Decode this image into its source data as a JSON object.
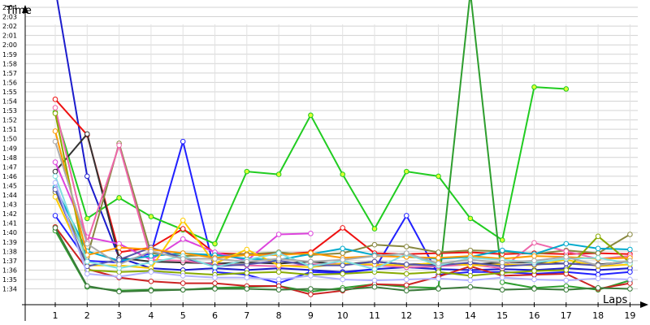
{
  "chart_data": {
    "type": "line",
    "title": "",
    "ylabel": "Time",
    "xlabel": "Laps",
    "x": [
      1,
      2,
      3,
      4,
      5,
      6,
      7,
      8,
      9,
      10,
      11,
      12,
      13,
      14,
      15,
      16,
      17,
      18,
      19
    ],
    "ylim_seconds": [
      93,
      126
    ],
    "yticks": [
      "1:34",
      "1:35",
      "1:36",
      "1:37",
      "1:38",
      "1:39",
      "1:40",
      "1:41",
      "1:42",
      "1:43",
      "1:44",
      "1:45",
      "1:46",
      "1:47",
      "1:48",
      "1:49",
      "1:50",
      "1:51",
      "1:52",
      "1:53",
      "1:54",
      "1:55",
      "1:56",
      "1:57",
      "1:58",
      "1:59",
      "2:00",
      "2:01",
      "2:02",
      "2:03",
      "2:04"
    ],
    "grid": true,
    "legend": "none",
    "series": [
      {
        "color": "#1c1ccc",
        "values": [
          130,
          106,
          97.3,
          96.2,
          96.0,
          96.2,
          96.0,
          96.2,
          96.0,
          95.8,
          96.1,
          96.3,
          96.1,
          96.0,
          96.1,
          96.0,
          96.2,
          96.0,
          96.2
        ]
      },
      {
        "color": "#2020ff",
        "values": [
          101.8,
          97.0,
          96.8,
          97.8,
          109.7,
          95.8,
          95.5,
          94.6,
          95.8,
          95.7,
          96.1,
          101.8,
          95.5,
          95.8,
          95.8,
          95.6,
          95.8,
          95.5,
          95.8
        ]
      },
      {
        "color": "#21cc21",
        "values": [
          112.8,
          101.5,
          103.7,
          101.7,
          100.3,
          98.8,
          106.5,
          106.2,
          112.5,
          106.2,
          100.4,
          106.5,
          106.0,
          101.5,
          99.2,
          115.5,
          115.3,
          null,
          null
        ]
      },
      {
        "color": "#2e9e2e",
        "values": [
          100.2,
          94.2,
          93.8,
          93.9,
          93.9,
          94.1,
          94.2,
          94.3,
          93.7,
          94.1,
          94.5,
          94.2,
          94.1,
          125.6,
          94.7,
          94.1,
          94.3,
          93.9,
          94.9
        ]
      },
      {
        "color": "#ee1111",
        "values": [
          114.2,
          110.4,
          97.9,
          98.4,
          100.4,
          97.8,
          97.7,
          97.7,
          97.9,
          100.5,
          97.8,
          97.7,
          97.8,
          97.9,
          97.7,
          97.8,
          97.7,
          97.8,
          97.7
        ]
      },
      {
        "color": "#cc2222",
        "values": [
          100.6,
          96.1,
          95.2,
          94.8,
          94.6,
          94.6,
          94.3,
          94.3,
          93.4,
          93.8,
          94.5,
          94.4,
          95.3,
          96.4,
          95.4,
          95.5,
          95.6,
          94.0,
          94.6
        ]
      },
      {
        "color": "#333333",
        "values": [
          106.5,
          110.5,
          97.3,
          96.9,
          96.8,
          96.7,
          96.8,
          96.7,
          96.9,
          96.6,
          96.9,
          96.6,
          96.7,
          96.6,
          96.8,
          96.8,
          96.7,
          96.6,
          96.9
        ]
      },
      {
        "color": "#888840",
        "values": [
          104.3,
          97.4,
          109.5,
          97.8,
          97.5,
          97.6,
          97.7,
          97.9,
          97.6,
          97.8,
          98.7,
          98.5,
          97.9,
          98.1,
          98.0,
          97.7,
          98.1,
          97.8,
          99.8
        ]
      },
      {
        "color": "#dd44dd",
        "values": [
          107.5,
          99.5,
          98.8,
          97.1,
          99.3,
          97.9,
          97.0,
          99.8,
          99.9,
          null,
          null,
          null,
          null,
          null,
          null,
          null,
          null,
          null,
          null
        ]
      },
      {
        "color": "#ee66aa",
        "values": [
          113.3,
          99.0,
          109.3,
          97.1,
          97.0,
          96.6,
          96.5,
          96.4,
          96.6,
          96.7,
          96.5,
          96.3,
          96.4,
          96.6,
          96.2,
          98.9,
          98.0,
          97.2,
          97.5
        ]
      },
      {
        "color": "#00aacc",
        "values": [
          104.8,
          98.0,
          97.0,
          97.5,
          97.8,
          97.6,
          97.2,
          97.1,
          97.7,
          98.3,
          97.6,
          97.4,
          97.2,
          97.4,
          98.1,
          97.7,
          98.8,
          98.3,
          98.2
        ]
      },
      {
        "color": "#ffcc00",
        "values": [
          103.8,
          96.5,
          96.5,
          96.2,
          101.3,
          96.7,
          98.2,
          96.5,
          96.3,
          96.7,
          96.6,
          96.5,
          96.8,
          96.5,
          96.6,
          96.5,
          97.1,
          96.4,
          96.6
        ]
      },
      {
        "color": "#88aa00",
        "values": [
          112.7,
          96.0,
          95.8,
          95.9,
          95.7,
          95.5,
          95.7,
          95.8,
          95.5,
          95.6,
          95.8,
          95.6,
          95.8,
          95.4,
          95.7,
          95.9,
          96.0,
          99.6,
          96.8
        ]
      },
      {
        "color": "#5555aa",
        "values": [
          104.6,
          96.4,
          97.1,
          98.4,
          97.3,
          96.4,
          96.6,
          97.0,
          96.5,
          96.5,
          96.9,
          96.6,
          96.5,
          96.8,
          96.4,
          96.6,
          96.7,
          96.5,
          96.9
        ]
      },
      {
        "color": "#ff9900",
        "values": [
          110.8,
          97.6,
          98.4,
          98.2,
          97.8,
          97.3,
          97.6,
          97.6,
          97.8,
          97.3,
          97.5,
          97.4,
          97.3,
          97.5,
          97.2,
          97.5,
          97.4,
          97.2,
          97.3
        ]
      },
      {
        "color": "#7fdfdf",
        "values": [
          106.0,
          96.9,
          96.2,
          96.8,
          97.5,
          96.3,
          97.1,
          97.8,
          96.4,
          97.0,
          96.1,
          97.7,
          96.5,
          97.3,
          97.1,
          96.8,
          97.2,
          97.3,
          96.7
        ]
      },
      {
        "color": "#aaaaaa",
        "values": [
          109.7,
          98.8,
          96.6,
          98.0,
          97.2,
          97.2,
          96.9,
          97.2,
          96.9,
          97.1,
          97.5,
          97.8,
          96.7,
          97.1,
          96.8,
          97.0,
          97.4,
          96.5,
          97.0
        ]
      },
      {
        "color": "#b0b0ff",
        "values": [
          105.3,
          95.6,
          95.3,
          95.8,
          95.4,
          95.2,
          95.2,
          95.0,
          95.4,
          95.0,
          94.9,
          95.0,
          95.1,
          94.9,
          95.2,
          95.0,
          94.9,
          95.1,
          95.0
        ]
      },
      {
        "color": "#3a7a3a",
        "values": [
          100.5,
          94.3,
          93.7,
          93.8,
          93.9,
          94.0,
          94.0,
          93.9,
          94.0,
          93.9,
          94.2,
          93.8,
          94.0,
          94.2,
          93.9,
          94.0,
          93.9,
          94.1,
          94.0
        ]
      }
    ]
  }
}
